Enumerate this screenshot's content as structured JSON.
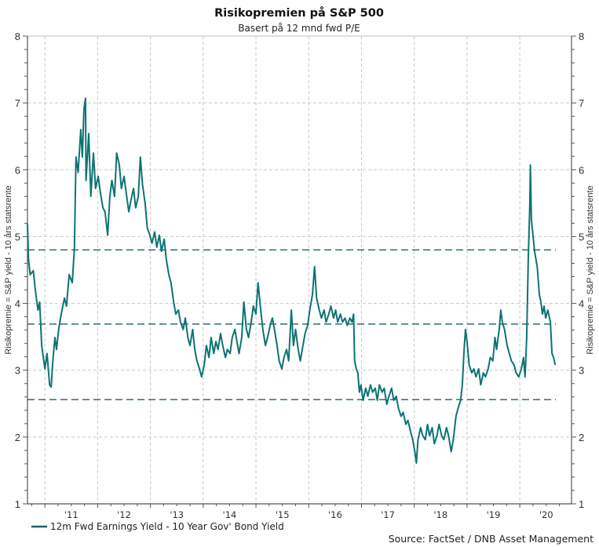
{
  "chart_data": {
    "type": "line",
    "title": "Risikopremien på S&P 500",
    "subtitle": "Basert på 12 mnd fwd P/E",
    "ylabel_left": "Risikopremie = S&P yield - 10 års statsrente",
    "ylabel_right": "Risikopremie = S&P yield - 10 års statsrente",
    "xlabel": "",
    "ylim": [
      1,
      8
    ],
    "xlim": [
      2010.67,
      2020.98
    ],
    "yticks": [
      1,
      2,
      3,
      4,
      5,
      6,
      7,
      8
    ],
    "y_minor_step": 0.2,
    "x_gridlines_at": [
      2011,
      2012,
      2013,
      2014,
      2015,
      2016,
      2017,
      2018,
      2019,
      2020
    ],
    "xtick_labels": [
      {
        "label": "'11",
        "at": 2011.5
      },
      {
        "label": "'12",
        "at": 2012.5
      },
      {
        "label": "'13",
        "at": 2013.5
      },
      {
        "label": "'14",
        "at": 2014.5
      },
      {
        "label": "'15",
        "at": 2015.5
      },
      {
        "label": "'16",
        "at": 2016.5
      },
      {
        "label": "'17",
        "at": 2017.5
      },
      {
        "label": "'18",
        "at": 2018.5
      },
      {
        "label": "'19",
        "at": 2019.5
      },
      {
        "label": "'20",
        "at": 2020.5
      }
    ],
    "grid": true,
    "reference_lines": [
      {
        "name": "plus-one-std",
        "value": 4.8
      },
      {
        "name": "mean",
        "value": 3.69
      },
      {
        "name": "minus-one-std",
        "value": 2.56
      }
    ],
    "series": [
      {
        "name": "12m Fwd Earnings Yield - 10 Year Gov' Bond Yield",
        "color": "#0e7373",
        "points": [
          [
            2010.67,
            5.19
          ],
          [
            2010.69,
            4.66
          ],
          [
            2010.72,
            4.43
          ],
          [
            2010.78,
            4.49
          ],
          [
            2010.82,
            4.19
          ],
          [
            2010.87,
            3.9
          ],
          [
            2010.9,
            4.02
          ],
          [
            2010.94,
            3.37
          ],
          [
            2010.97,
            3.19
          ],
          [
            2011.0,
            3.02
          ],
          [
            2011.04,
            3.25
          ],
          [
            2011.09,
            2.78
          ],
          [
            2011.12,
            2.75
          ],
          [
            2011.15,
            3.14
          ],
          [
            2011.19,
            3.49
          ],
          [
            2011.22,
            3.31
          ],
          [
            2011.26,
            3.61
          ],
          [
            2011.31,
            3.84
          ],
          [
            2011.37,
            4.08
          ],
          [
            2011.41,
            3.96
          ],
          [
            2011.46,
            4.43
          ],
          [
            2011.52,
            4.31
          ],
          [
            2011.56,
            4.84
          ],
          [
            2011.59,
            6.19
          ],
          [
            2011.63,
            5.96
          ],
          [
            2011.68,
            6.6
          ],
          [
            2011.71,
            6.19
          ],
          [
            2011.74,
            6.9
          ],
          [
            2011.77,
            7.07
          ],
          [
            2011.78,
            5.84
          ],
          [
            2011.83,
            6.54
          ],
          [
            2011.87,
            5.6
          ],
          [
            2011.92,
            6.25
          ],
          [
            2011.96,
            5.72
          ],
          [
            2012.01,
            5.9
          ],
          [
            2012.05,
            5.66
          ],
          [
            2012.1,
            5.43
          ],
          [
            2012.14,
            5.37
          ],
          [
            2012.19,
            5.02
          ],
          [
            2012.23,
            5.6
          ],
          [
            2012.27,
            5.84
          ],
          [
            2012.32,
            5.6
          ],
          [
            2012.36,
            6.25
          ],
          [
            2012.41,
            6.07
          ],
          [
            2012.45,
            5.72
          ],
          [
            2012.5,
            5.9
          ],
          [
            2012.54,
            5.66
          ],
          [
            2012.59,
            5.37
          ],
          [
            2012.63,
            5.54
          ],
          [
            2012.68,
            5.72
          ],
          [
            2012.72,
            5.43
          ],
          [
            2012.77,
            5.6
          ],
          [
            2012.81,
            6.19
          ],
          [
            2012.85,
            5.78
          ],
          [
            2012.9,
            5.49
          ],
          [
            2012.94,
            5.13
          ],
          [
            2012.99,
            5.02
          ],
          [
            2013.03,
            4.9
          ],
          [
            2013.08,
            5.07
          ],
          [
            2013.12,
            4.84
          ],
          [
            2013.17,
            5.02
          ],
          [
            2013.21,
            4.78
          ],
          [
            2013.26,
            4.96
          ],
          [
            2013.3,
            4.66
          ],
          [
            2013.35,
            4.43
          ],
          [
            2013.39,
            4.31
          ],
          [
            2013.44,
            4.02
          ],
          [
            2013.48,
            3.84
          ],
          [
            2013.53,
            3.9
          ],
          [
            2013.57,
            3.72
          ],
          [
            2013.62,
            3.61
          ],
          [
            2013.66,
            3.78
          ],
          [
            2013.71,
            3.49
          ],
          [
            2013.75,
            3.37
          ],
          [
            2013.8,
            3.61
          ],
          [
            2013.84,
            3.31
          ],
          [
            2013.88,
            3.14
          ],
          [
            2013.93,
            3.02
          ],
          [
            2013.97,
            2.9
          ],
          [
            2014.02,
            3.08
          ],
          [
            2014.06,
            3.37
          ],
          [
            2014.11,
            3.19
          ],
          [
            2014.15,
            3.49
          ],
          [
            2014.2,
            3.25
          ],
          [
            2014.24,
            3.43
          ],
          [
            2014.28,
            3.31
          ],
          [
            2014.33,
            3.55
          ],
          [
            2014.37,
            3.37
          ],
          [
            2014.42,
            3.19
          ],
          [
            2014.46,
            3.31
          ],
          [
            2014.51,
            3.25
          ],
          [
            2014.55,
            3.49
          ],
          [
            2014.6,
            3.61
          ],
          [
            2014.64,
            3.43
          ],
          [
            2014.68,
            3.25
          ],
          [
            2014.73,
            3.49
          ],
          [
            2014.77,
            4.02
          ],
          [
            2014.82,
            3.61
          ],
          [
            2014.86,
            3.49
          ],
          [
            2014.91,
            3.72
          ],
          [
            2014.95,
            3.96
          ],
          [
            2015.0,
            3.84
          ],
          [
            2015.04,
            4.31
          ],
          [
            2015.09,
            3.9
          ],
          [
            2015.13,
            3.61
          ],
          [
            2015.18,
            3.37
          ],
          [
            2015.22,
            3.49
          ],
          [
            2015.27,
            3.67
          ],
          [
            2015.31,
            3.78
          ],
          [
            2015.35,
            3.61
          ],
          [
            2015.4,
            3.37
          ],
          [
            2015.44,
            3.14
          ],
          [
            2015.49,
            3.02
          ],
          [
            2015.53,
            3.19
          ],
          [
            2015.58,
            3.31
          ],
          [
            2015.62,
            3.14
          ],
          [
            2015.67,
            3.9
          ],
          [
            2015.71,
            3.37
          ],
          [
            2015.75,
            3.61
          ],
          [
            2015.8,
            3.31
          ],
          [
            2015.84,
            3.14
          ],
          [
            2015.89,
            3.37
          ],
          [
            2015.93,
            3.55
          ],
          [
            2015.98,
            3.67
          ],
          [
            2016.02,
            3.9
          ],
          [
            2016.07,
            4.13
          ],
          [
            2016.11,
            4.55
          ],
          [
            2016.15,
            4.08
          ],
          [
            2016.2,
            3.9
          ],
          [
            2016.24,
            3.78
          ],
          [
            2016.29,
            3.9
          ],
          [
            2016.33,
            3.72
          ],
          [
            2016.38,
            3.84
          ],
          [
            2016.42,
            3.96
          ],
          [
            2016.47,
            3.78
          ],
          [
            2016.51,
            3.9
          ],
          [
            2016.55,
            3.72
          ],
          [
            2016.6,
            3.84
          ],
          [
            2016.64,
            3.72
          ],
          [
            2016.69,
            3.78
          ],
          [
            2016.73,
            3.67
          ],
          [
            2016.78,
            3.78
          ],
          [
            2016.82,
            3.72
          ],
          [
            2016.85,
            3.84
          ],
          [
            2016.87,
            3.14
          ],
          [
            2016.9,
            3.02
          ],
          [
            2016.93,
            2.96
          ],
          [
            2016.96,
            2.67
          ],
          [
            2016.99,
            2.78
          ],
          [
            2017.03,
            2.55
          ],
          [
            2017.08,
            2.73
          ],
          [
            2017.12,
            2.61
          ],
          [
            2017.17,
            2.78
          ],
          [
            2017.21,
            2.67
          ],
          [
            2017.26,
            2.73
          ],
          [
            2017.3,
            2.55
          ],
          [
            2017.34,
            2.78
          ],
          [
            2017.39,
            2.67
          ],
          [
            2017.43,
            2.73
          ],
          [
            2017.48,
            2.49
          ],
          [
            2017.52,
            2.61
          ],
          [
            2017.57,
            2.73
          ],
          [
            2017.61,
            2.55
          ],
          [
            2017.66,
            2.61
          ],
          [
            2017.7,
            2.43
          ],
          [
            2017.75,
            2.31
          ],
          [
            2017.79,
            2.37
          ],
          [
            2017.84,
            2.19
          ],
          [
            2017.88,
            2.25
          ],
          [
            2017.93,
            2.08
          ],
          [
            2017.97,
            1.96
          ],
          [
            2018.01,
            1.78
          ],
          [
            2018.04,
            1.61
          ],
          [
            2018.07,
            1.96
          ],
          [
            2018.12,
            2.14
          ],
          [
            2018.16,
            2.02
          ],
          [
            2018.21,
            1.96
          ],
          [
            2018.25,
            2.19
          ],
          [
            2018.29,
            2.02
          ],
          [
            2018.34,
            2.14
          ],
          [
            2018.38,
            1.9
          ],
          [
            2018.43,
            2.02
          ],
          [
            2018.47,
            2.19
          ],
          [
            2018.52,
            2.02
          ],
          [
            2018.56,
            1.96
          ],
          [
            2018.61,
            2.14
          ],
          [
            2018.65,
            2.02
          ],
          [
            2018.7,
            1.78
          ],
          [
            2018.74,
            1.96
          ],
          [
            2018.79,
            2.31
          ],
          [
            2018.83,
            2.43
          ],
          [
            2018.88,
            2.55
          ],
          [
            2018.91,
            2.78
          ],
          [
            2018.94,
            3.25
          ],
          [
            2018.97,
            3.61
          ],
          [
            2019.0,
            3.43
          ],
          [
            2019.04,
            3.08
          ],
          [
            2019.09,
            2.96
          ],
          [
            2019.13,
            3.02
          ],
          [
            2019.17,
            2.9
          ],
          [
            2019.22,
            3.02
          ],
          [
            2019.26,
            2.78
          ],
          [
            2019.31,
            2.96
          ],
          [
            2019.35,
            2.9
          ],
          [
            2019.4,
            3.02
          ],
          [
            2019.44,
            3.19
          ],
          [
            2019.49,
            3.14
          ],
          [
            2019.53,
            3.49
          ],
          [
            2019.56,
            3.31
          ],
          [
            2019.61,
            3.61
          ],
          [
            2019.64,
            3.9
          ],
          [
            2019.67,
            3.72
          ],
          [
            2019.71,
            3.61
          ],
          [
            2019.76,
            3.37
          ],
          [
            2019.8,
            3.25
          ],
          [
            2019.84,
            3.14
          ],
          [
            2019.89,
            3.08
          ],
          [
            2019.93,
            2.96
          ],
          [
            2019.98,
            2.9
          ],
          [
            2020.03,
            3.02
          ],
          [
            2020.07,
            3.19
          ],
          [
            2020.1,
            2.9
          ],
          [
            2020.13,
            3.49
          ],
          [
            2020.16,
            4.66
          ],
          [
            2020.19,
            5.49
          ],
          [
            2020.2,
            6.07
          ],
          [
            2020.22,
            5.25
          ],
          [
            2020.25,
            5.02
          ],
          [
            2020.28,
            4.78
          ],
          [
            2020.33,
            4.55
          ],
          [
            2020.37,
            4.13
          ],
          [
            2020.4,
            4.02
          ],
          [
            2020.43,
            3.84
          ],
          [
            2020.46,
            3.96
          ],
          [
            2020.49,
            3.78
          ],
          [
            2020.53,
            3.9
          ],
          [
            2020.58,
            3.72
          ],
          [
            2020.61,
            3.25
          ],
          [
            2020.64,
            3.19
          ],
          [
            2020.67,
            3.08
          ]
        ]
      }
    ],
    "legend": {
      "position": "bottom-left",
      "entries": [
        {
          "label": "12m Fwd Earnings Yield - 10 Year Gov' Bond Yield",
          "color": "#0e7373"
        }
      ]
    },
    "source": "Source: FactSet / DNB Asset Management",
    "colors": {
      "series": "#0e7373",
      "reference_line": "#1f5f66",
      "grid": "#c8c8c8",
      "axis": "#555555"
    }
  }
}
